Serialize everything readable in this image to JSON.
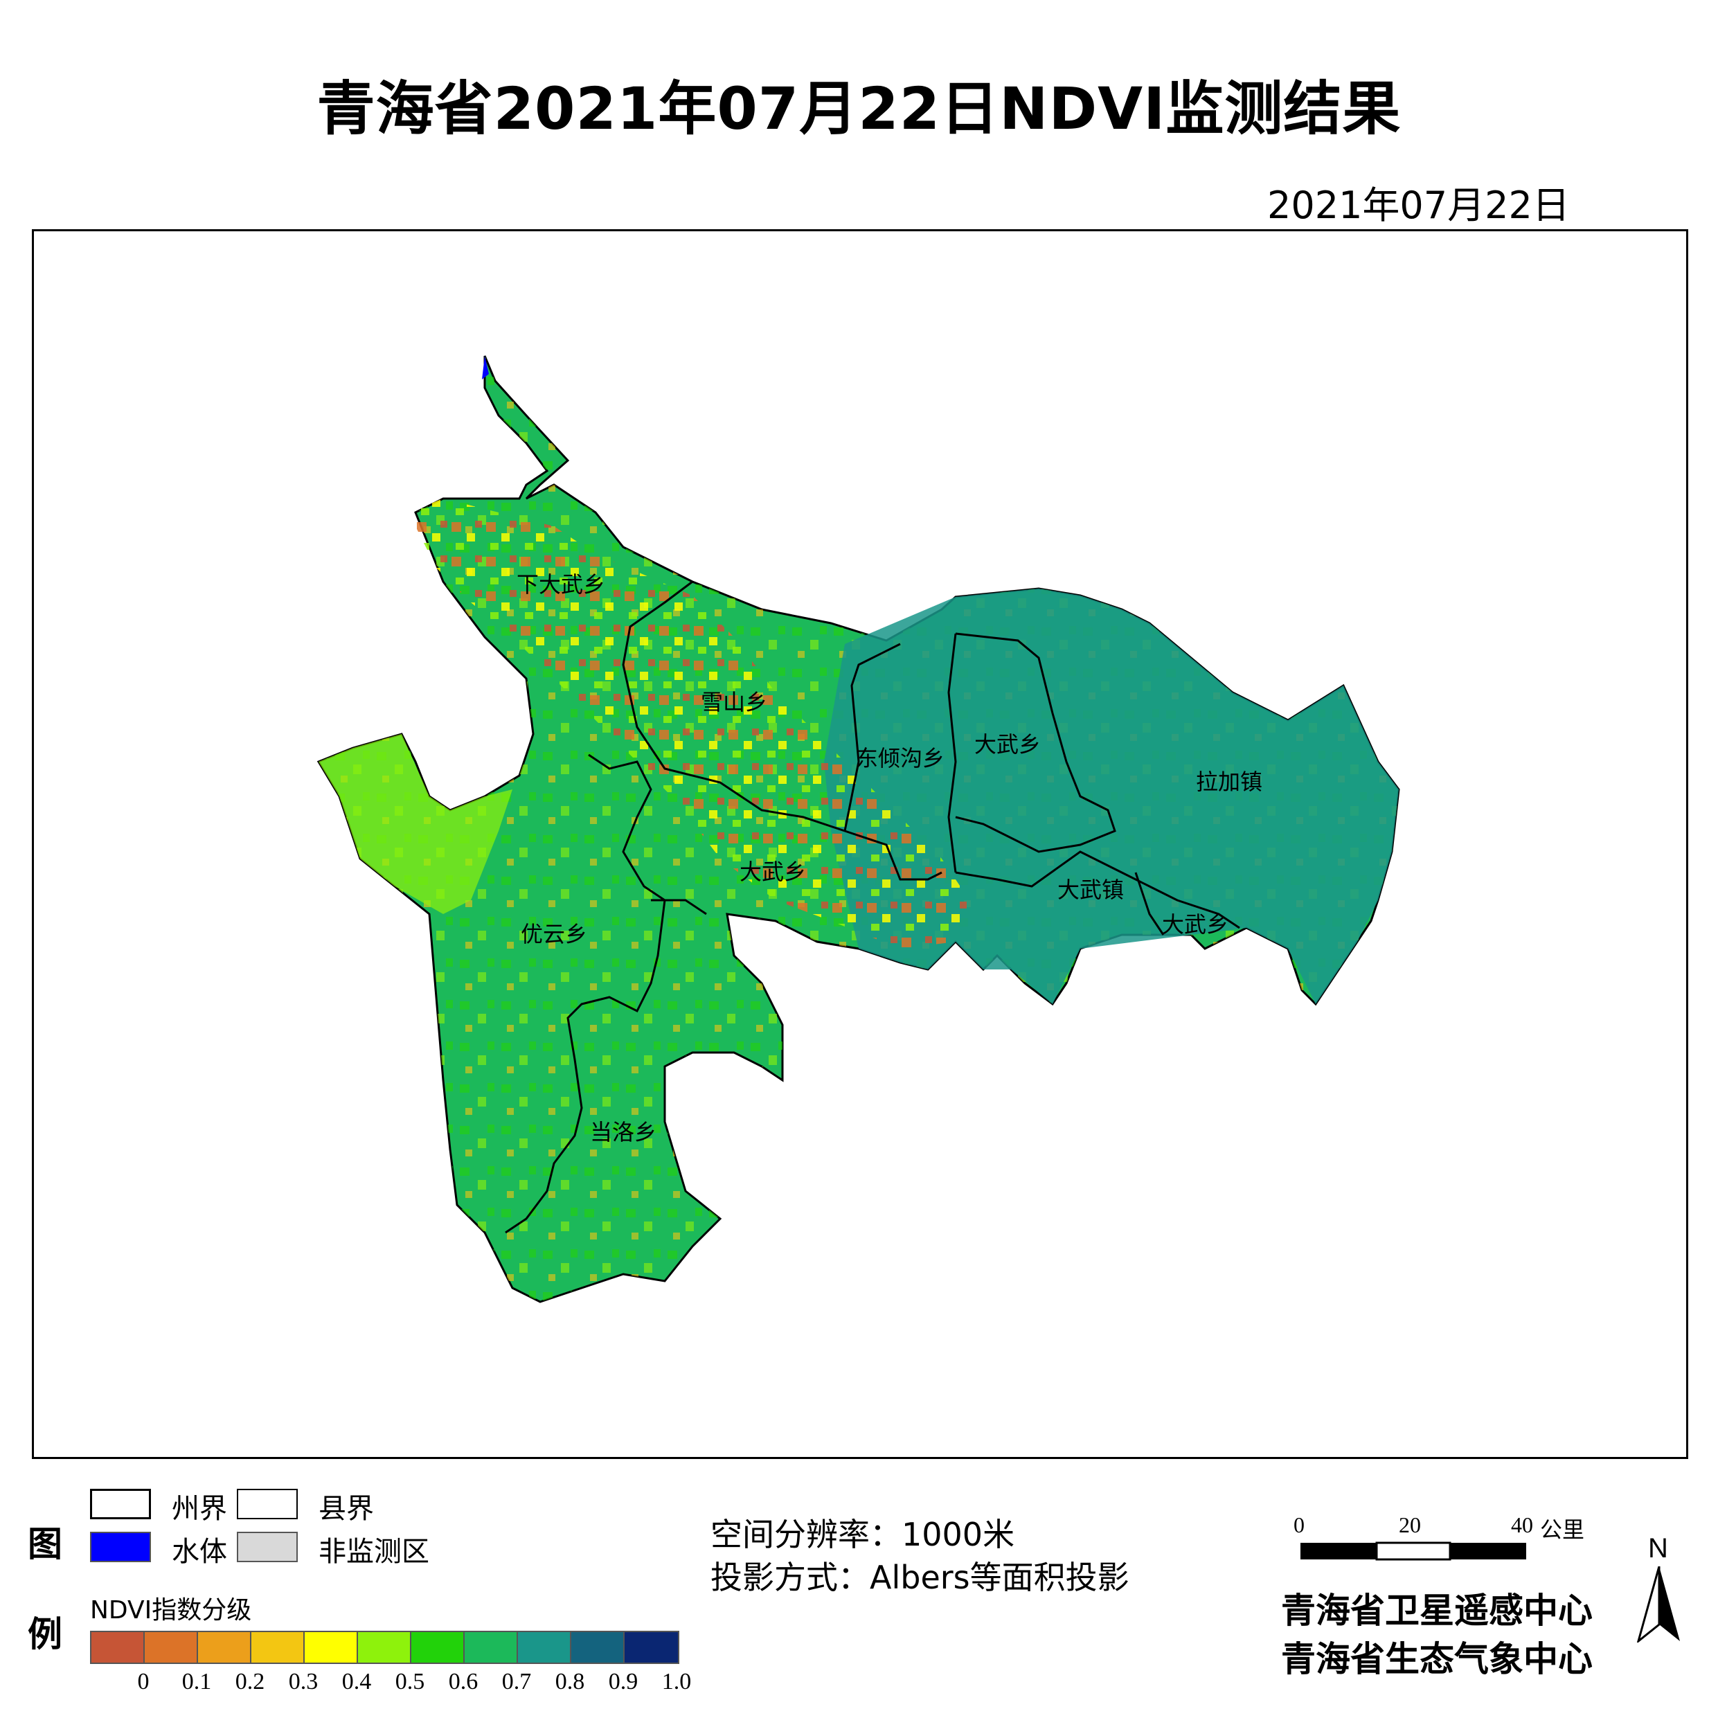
{
  "title": "青海省2021年07月22日NDVI监测结果",
  "date": "2021年07月22日",
  "places": [
    "下大武乡",
    "雪山乡",
    "东倾沟乡",
    "大武乡",
    "拉加镇",
    "大武乡",
    "大武镇",
    "大武乡",
    "优云乡",
    "当洛乡"
  ],
  "legend": {
    "head_top": "图",
    "head_bottom": "例",
    "items": [
      {
        "label": "州界"
      },
      {
        "label": "县界"
      },
      {
        "label": "水体",
        "color": "#0000ff"
      },
      {
        "label": "非监测区",
        "color": "#d9d9d9"
      }
    ],
    "ramp_title": "NDVI指数分级",
    "ramp_colors": [
      "#c65536",
      "#dc7328",
      "#ec9f1b",
      "#f3c612",
      "#ffff00",
      "#8ef20c",
      "#22d20a",
      "#1cb95a",
      "#1a968a",
      "#14637e",
      "#0a2672"
    ],
    "ticks": [
      "0",
      "0.1",
      "0.2",
      "0.3",
      "0.4",
      "0.5",
      "0.6",
      "0.7",
      "0.8",
      "0.9",
      "1.0"
    ]
  },
  "info": {
    "resolution": "空间分辨率：1000米",
    "projection": "投影方式：Albers等面积投影"
  },
  "scale": {
    "labels": [
      "0",
      "20",
      "40"
    ],
    "unit": "公里"
  },
  "north": "N",
  "org": [
    "青海省卫星遥感中心",
    "青海省生态气象中心"
  ]
}
